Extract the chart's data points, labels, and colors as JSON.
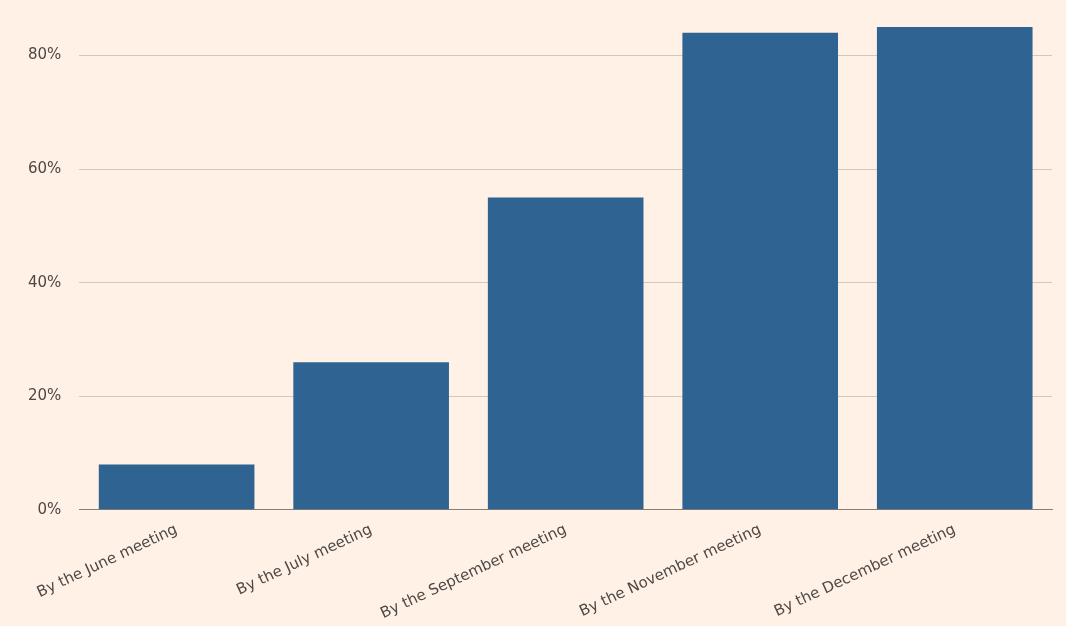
{
  "chart_data": {
    "type": "bar",
    "categories": [
      "By the June meeting",
      "By the July meeting",
      "By the September meeting",
      "By the November meeting",
      "By the December meeting"
    ],
    "values": [
      8,
      26,
      55,
      84,
      85
    ],
    "color": "#2f6391",
    "ylim": [
      0,
      85
    ],
    "yticks": [
      {
        "value": 0,
        "label": "0%"
      },
      {
        "value": 20,
        "label": "20%"
      },
      {
        "value": 40,
        "label": "40%"
      },
      {
        "value": 60,
        "label": "60%"
      },
      {
        "value": 80,
        "label": "80%"
      }
    ],
    "grid": "y",
    "legend": false
  }
}
